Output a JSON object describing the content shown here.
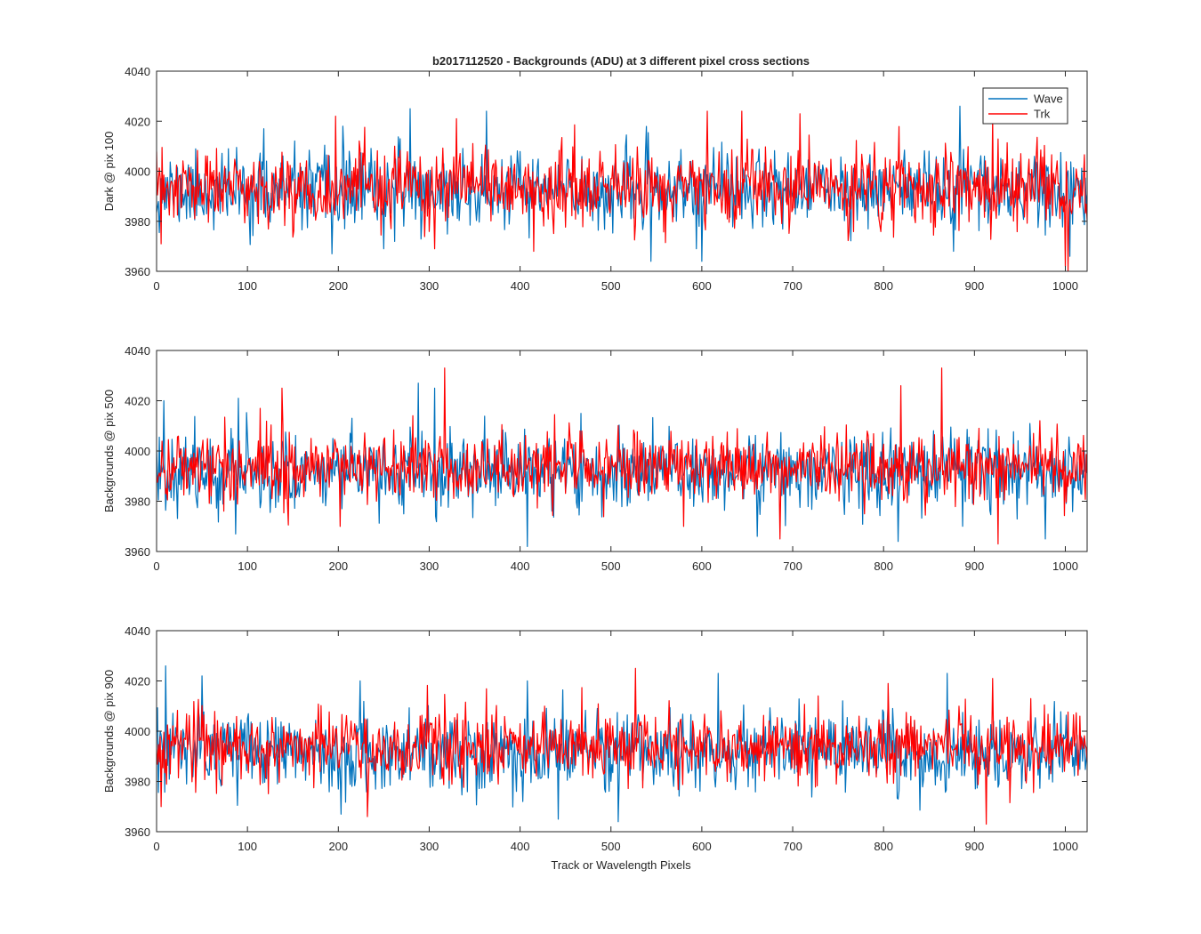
{
  "chart_data": {
    "type": "line",
    "title": "b2017112520 - Backgrounds (ADU) at 3 different pixel cross sections",
    "xlabel": "Track or Wavelength Pixels",
    "xlim": [
      0,
      1024
    ],
    "xticks": [
      0,
      100,
      200,
      300,
      400,
      500,
      600,
      700,
      800,
      900,
      1000
    ],
    "ylim": [
      3960,
      4040
    ],
    "yticks": [
      3960,
      3980,
      4000,
      4020,
      4040
    ],
    "legend": {
      "position": "top-right",
      "entries": [
        "Wave",
        "Trk"
      ]
    },
    "colors": {
      "Wave": "#0072BD",
      "Trk": "#FF0000",
      "axis": "#262626"
    },
    "series_note": "Each panel shows ~1024 noisy samples per series centred near 3992-3994 ADU with a std of roughly 7-8 ADU; notable spikes are listed.",
    "panels": [
      {
        "ylabel": "Dark @ pix 100",
        "series": [
          {
            "name": "Wave",
            "mean": 3992,
            "std": 7.5,
            "seed": 11,
            "spikes": [
              [
                118,
                4017
              ],
              [
                205,
                4018
              ],
              [
                279,
                4025
              ],
              [
                363,
                4024
              ],
              [
                884,
                4026
              ],
              [
                544,
                3964
              ],
              [
                600,
                3964
              ],
              [
                193,
                3967
              ],
              [
                250,
                3969
              ],
              [
                877,
                3968
              ],
              [
                1005,
                3966
              ]
            ]
          },
          {
            "name": "Trk",
            "mean": 3993,
            "std": 7.5,
            "seed": 23,
            "spikes": [
              [
                197,
                4022
              ],
              [
                330,
                4021
              ],
              [
                606,
                4024
              ],
              [
                644,
                4024
              ],
              [
                708,
                4023
              ],
              [
                920,
                4022
              ],
              [
                1000,
                3962
              ],
              [
                1003,
                3960
              ],
              [
                306,
                3969
              ],
              [
                415,
                3968
              ],
              [
                5,
                3971
              ]
            ]
          }
        ]
      },
      {
        "ylabel": "Backgrounds @ pix 500",
        "series": [
          {
            "name": "Wave",
            "mean": 3992,
            "std": 7.5,
            "seed": 37,
            "spikes": [
              [
                8,
                4020
              ],
              [
                90,
                4021
              ],
              [
                288,
                4027
              ],
              [
                306,
                4025
              ],
              [
                408,
                3962
              ],
              [
                87,
                3967
              ],
              [
                661,
                3966
              ],
              [
                816,
                3964
              ],
              [
                978,
                3965
              ]
            ]
          },
          {
            "name": "Trk",
            "mean": 3994,
            "std": 7.0,
            "seed": 41,
            "spikes": [
              [
                317,
                4033
              ],
              [
                138,
                4025
              ],
              [
                819,
                4026
              ],
              [
                864,
                4033
              ],
              [
                926,
                3963
              ],
              [
                202,
                3970
              ],
              [
                686,
                3965
              ],
              [
                580,
                3970
              ]
            ]
          }
        ]
      },
      {
        "ylabel": "Backgrounds @ pix 900",
        "series": [
          {
            "name": "Wave",
            "mean": 3992,
            "std": 7.5,
            "seed": 53,
            "spikes": [
              [
                10,
                4026
              ],
              [
                50,
                4022
              ],
              [
                224,
                4020
              ],
              [
                408,
                4020
              ],
              [
                618,
                4023
              ],
              [
                870,
                4023
              ],
              [
                442,
                3965
              ],
              [
                508,
                3964
              ],
              [
                203,
                3967
              ]
            ]
          },
          {
            "name": "Trk",
            "mean": 3994,
            "std": 7.0,
            "seed": 67,
            "spikes": [
              [
                527,
                4025
              ],
              [
                805,
                4019
              ],
              [
                920,
                4021
              ],
              [
                232,
                3966
              ],
              [
                913,
                3963
              ],
              [
                5,
                3970
              ]
            ]
          }
        ]
      }
    ]
  }
}
